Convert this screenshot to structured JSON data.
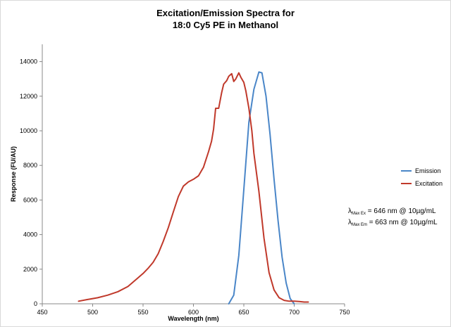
{
  "chart_data": {
    "type": "line",
    "title_line1": "Excitation/Emission Spectra for",
    "title_line2": "18:0 Cy5 PE in Methanol",
    "xlabel": "Wavelength (nm)",
    "ylabel": "Response (FU/AU)",
    "xlim": [
      450,
      750
    ],
    "ylim": [
      0,
      15000
    ],
    "x_ticks": [
      450,
      500,
      550,
      600,
      650,
      700,
      750
    ],
    "y_ticks": [
      0,
      2000,
      4000,
      6000,
      8000,
      10000,
      12000,
      14000
    ],
    "grid": false,
    "legend_position": "right",
    "series": [
      {
        "name": "Emission",
        "color": "#4a86c8",
        "x": [
          635,
          640,
          645,
          650,
          655,
          660,
          665,
          668,
          672,
          676,
          680,
          684,
          688,
          692,
          696,
          700
        ],
        "y": [
          0,
          500,
          2800,
          6600,
          10500,
          12400,
          13400,
          13350,
          12000,
          9800,
          7200,
          4800,
          2700,
          1200,
          300,
          0
        ]
      },
      {
        "name": "Excitation",
        "color": "#c0392b",
        "x": [
          486,
          495,
          505,
          515,
          525,
          535,
          545,
          550,
          555,
          560,
          565,
          570,
          575,
          580,
          585,
          590,
          595,
          600,
          605,
          610,
          615,
          618,
          620,
          622,
          625,
          628,
          630,
          633,
          635,
          638,
          640,
          642,
          645,
          647,
          650,
          652,
          655,
          658,
          660,
          665,
          670,
          675,
          680,
          685,
          690,
          695,
          700,
          705,
          710,
          714
        ],
        "y": [
          150,
          250,
          350,
          500,
          700,
          1000,
          1500,
          1750,
          2050,
          2400,
          2900,
          3600,
          4400,
          5300,
          6200,
          6800,
          7050,
          7200,
          7400,
          7900,
          8800,
          9400,
          10100,
          11300,
          11300,
          12200,
          12700,
          12900,
          13150,
          13300,
          12850,
          13000,
          13350,
          13100,
          12800,
          12300,
          11300,
          10000,
          8700,
          6500,
          3800,
          1800,
          800,
          350,
          200,
          150,
          150,
          130,
          100,
          100
        ]
      }
    ],
    "annotations": [
      {
        "lambda": "λ",
        "subscript": "Max Ex",
        "text": " = 646 nm @ 10µg/mL"
      },
      {
        "lambda": "λ",
        "subscript": "Max Em",
        "text": " = 663 nm @ 10µg/mL"
      }
    ]
  }
}
